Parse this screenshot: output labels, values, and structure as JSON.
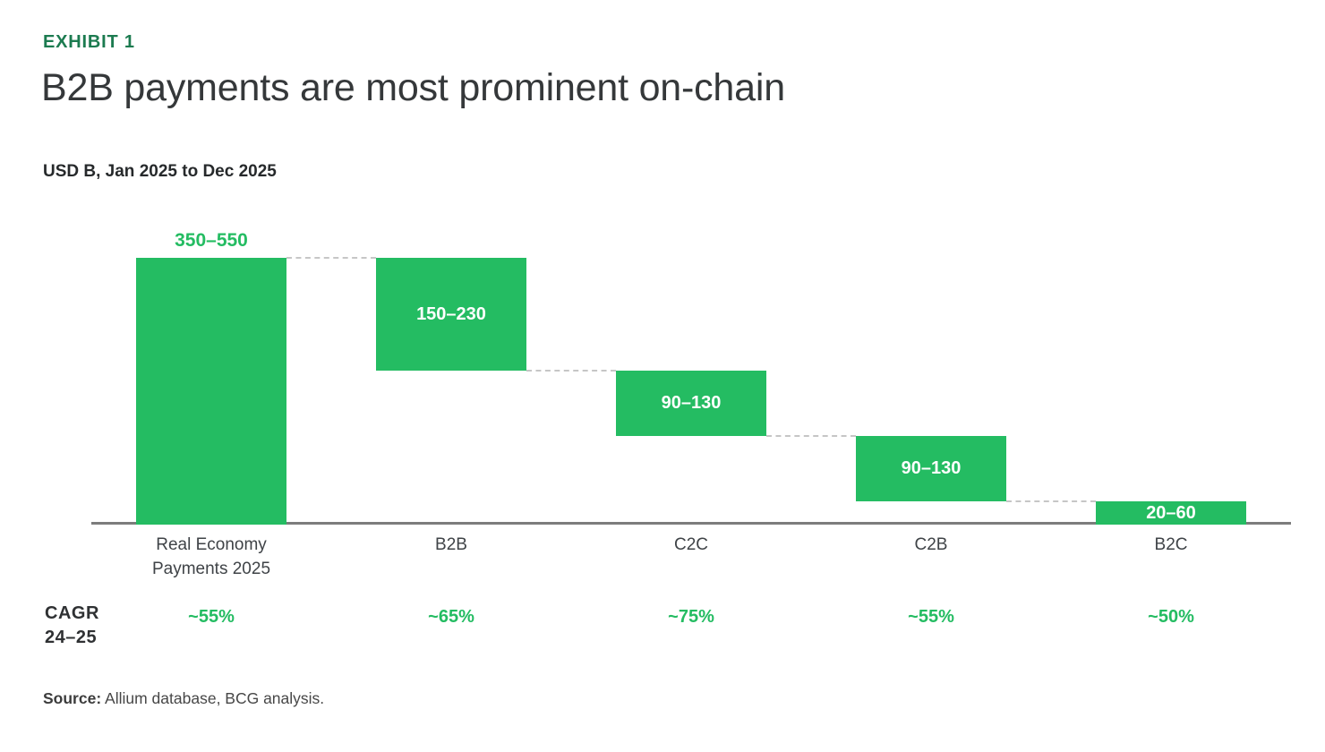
{
  "exhibit_label": "EXHIBIT 1",
  "title": "B2B payments are most prominent on-chain",
  "subtitle": "USD B, Jan 2025 to Dec 2025",
  "cagr_side_label": "CAGR\n24–25",
  "source": {
    "prefix": "Source:",
    "text": " Allium database, BCG analysis."
  },
  "colors": {
    "bar_green": "#24BC62",
    "exhibit_green": "#1C7B50",
    "connector_gray": "#C6C6C6",
    "axis_gray": "#7C7C7C",
    "white": "#FFFFFF"
  },
  "chart_data": {
    "type": "bar",
    "subtype": "waterfall",
    "unit": "USD B",
    "period": "Jan 2025 to Dec 2025",
    "title": "B2B payments are most prominent on-chain",
    "ylim": [
      0,
      450
    ],
    "grid": false,
    "legend": false,
    "categories": [
      "Real Economy\nPayments 2025",
      "B2B",
      "C2C",
      "C2B",
      "B2C"
    ],
    "bars": [
      {
        "category": "Real Economy Payments 2025",
        "range_label": "350–550",
        "low": 350,
        "high": 550,
        "mid": 450,
        "role": "total",
        "label_position": "above"
      },
      {
        "category": "B2B",
        "range_label": "150–230",
        "low": 150,
        "high": 230,
        "mid": 190,
        "role": "segment",
        "label_position": "inside"
      },
      {
        "category": "C2C",
        "range_label": "90–130",
        "low": 90,
        "high": 130,
        "mid": 110,
        "role": "segment",
        "label_position": "inside"
      },
      {
        "category": "C2B",
        "range_label": "90–130",
        "low": 90,
        "high": 130,
        "mid": 110,
        "role": "segment",
        "label_position": "inside"
      },
      {
        "category": "B2C",
        "range_label": "20–60",
        "low": 20,
        "high": 60,
        "mid": 40,
        "role": "segment",
        "label_position": "inside"
      }
    ],
    "cagr_row": {
      "label": "CAGR 24–25",
      "values": [
        "~55%",
        "~65%",
        "~75%",
        "~55%",
        "~50%"
      ]
    }
  }
}
